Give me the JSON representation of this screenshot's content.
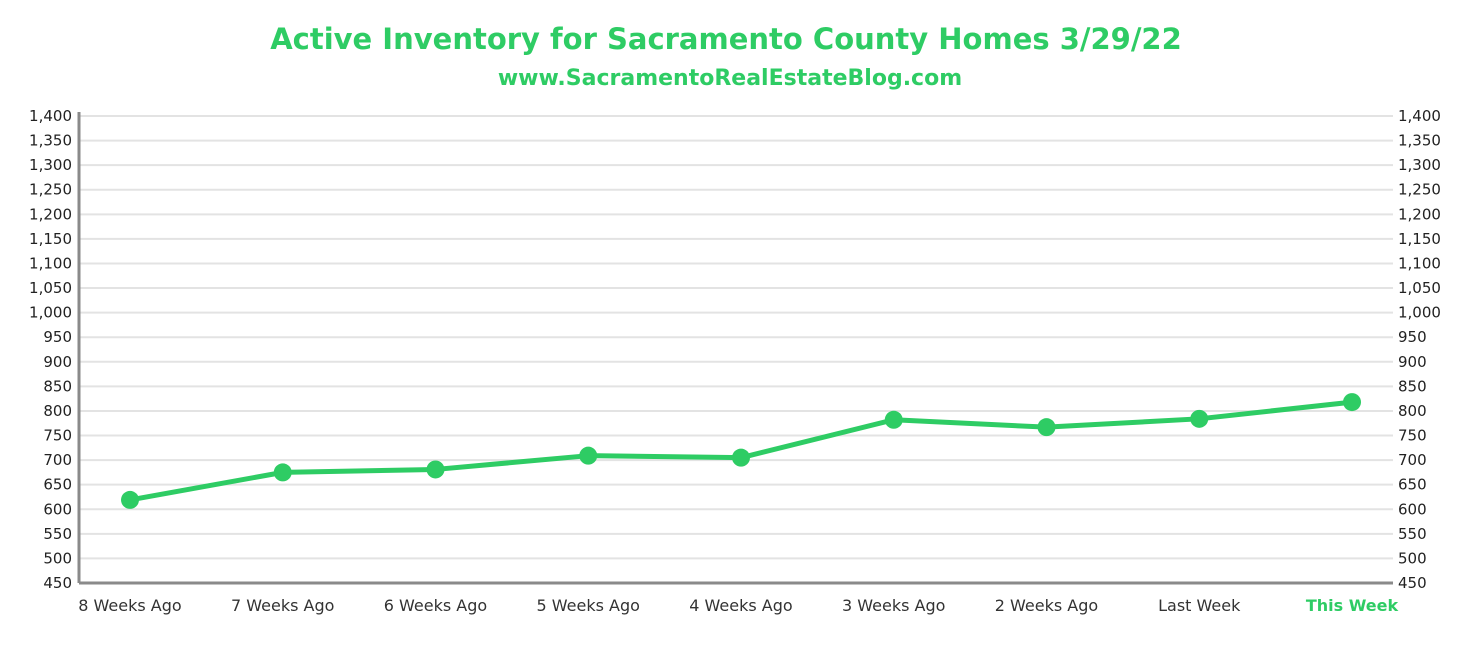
{
  "header": {
    "title": "Active Inventory for Sacramento County Homes 3/29/22",
    "subtitle": "www.SacramentoRealEstateBlog.com"
  },
  "colors": {
    "accent": "#2ecc64",
    "grid": "#e3e3e3",
    "axis": "#8a8a8a",
    "text": "#222222"
  },
  "chart_data": {
    "type": "line",
    "title": "Active Inventory for Sacramento County Homes 3/29/22",
    "subtitle": "www.SacramentoRealEstateBlog.com",
    "categories": [
      "8 Weeks Ago",
      "7 Weeks Ago",
      "6 Weeks Ago",
      "5 Weeks Ago",
      "4 Weeks Ago",
      "3 Weeks Ago",
      "2 Weeks Ago",
      "Last Week",
      "This Week"
    ],
    "highlight_category": "This Week",
    "series": [
      {
        "values": [
          619,
          675,
          681,
          709,
          705,
          782,
          767,
          784,
          818
        ],
        "color": "#2ecc64"
      }
    ],
    "ylim": [
      450,
      1400
    ],
    "y_ticks": [
      450,
      500,
      550,
      600,
      650,
      700,
      750,
      800,
      850,
      900,
      950,
      1000,
      1050,
      1100,
      1150,
      1200,
      1250,
      1300,
      1350,
      1400
    ],
    "y_tick_labels": [
      "450",
      "500",
      "550",
      "600",
      "650",
      "700",
      "750",
      "800",
      "850",
      "900",
      "950",
      "1,000",
      "1,050",
      "1,100",
      "1,150",
      "1,200",
      "1,250",
      "1,300",
      "1,350",
      "1,400"
    ],
    "secondary_y_axis": true,
    "grid": true,
    "legend": "none",
    "xlabel": "",
    "ylabel": ""
  }
}
